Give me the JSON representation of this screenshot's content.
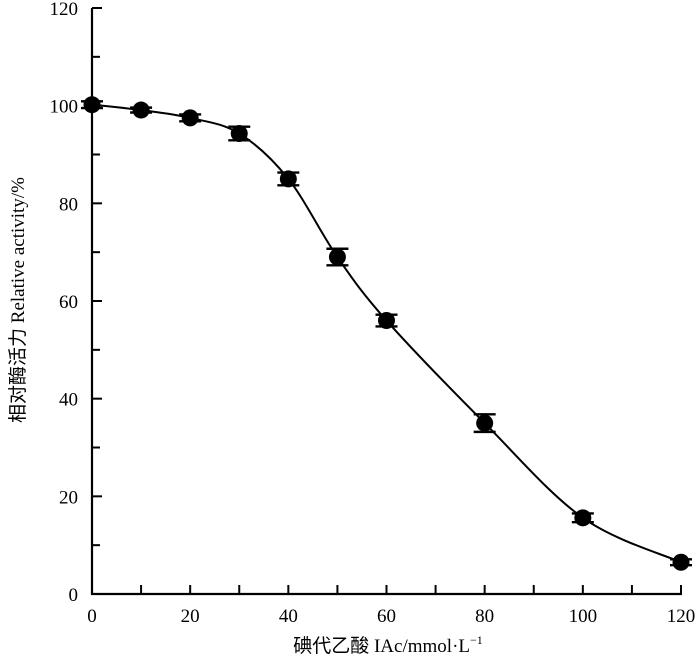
{
  "chart_data": {
    "type": "line",
    "title": "",
    "xlabel": "碘代乙酸 IAc/mmol·L",
    "xlabel_superscript": "−1",
    "ylabel": "相对酶活力 Relative activity/%",
    "xlim": [
      0,
      120
    ],
    "ylim": [
      0,
      120
    ],
    "x_ticks": [
      "0",
      "20",
      "40",
      "60",
      "80",
      "100",
      "120"
    ],
    "y_ticks": [
      "0",
      "20",
      "40",
      "60",
      "80",
      "100",
      "120"
    ],
    "grid": false,
    "series": [
      {
        "x": [
          0,
          10,
          20,
          30,
          40,
          50,
          60,
          80,
          100,
          120
        ],
        "y": [
          100.2,
          99.1,
          97.5,
          94.3,
          85.0,
          69.0,
          56.0,
          35.0,
          15.6,
          6.5
        ],
        "error": [
          0.7,
          0.5,
          0.7,
          1.4,
          1.3,
          1.7,
          1.2,
          1.8,
          0.9,
          0.6
        ]
      }
    ],
    "colors": {
      "line": "#000000",
      "marker": "#000000"
    }
  }
}
